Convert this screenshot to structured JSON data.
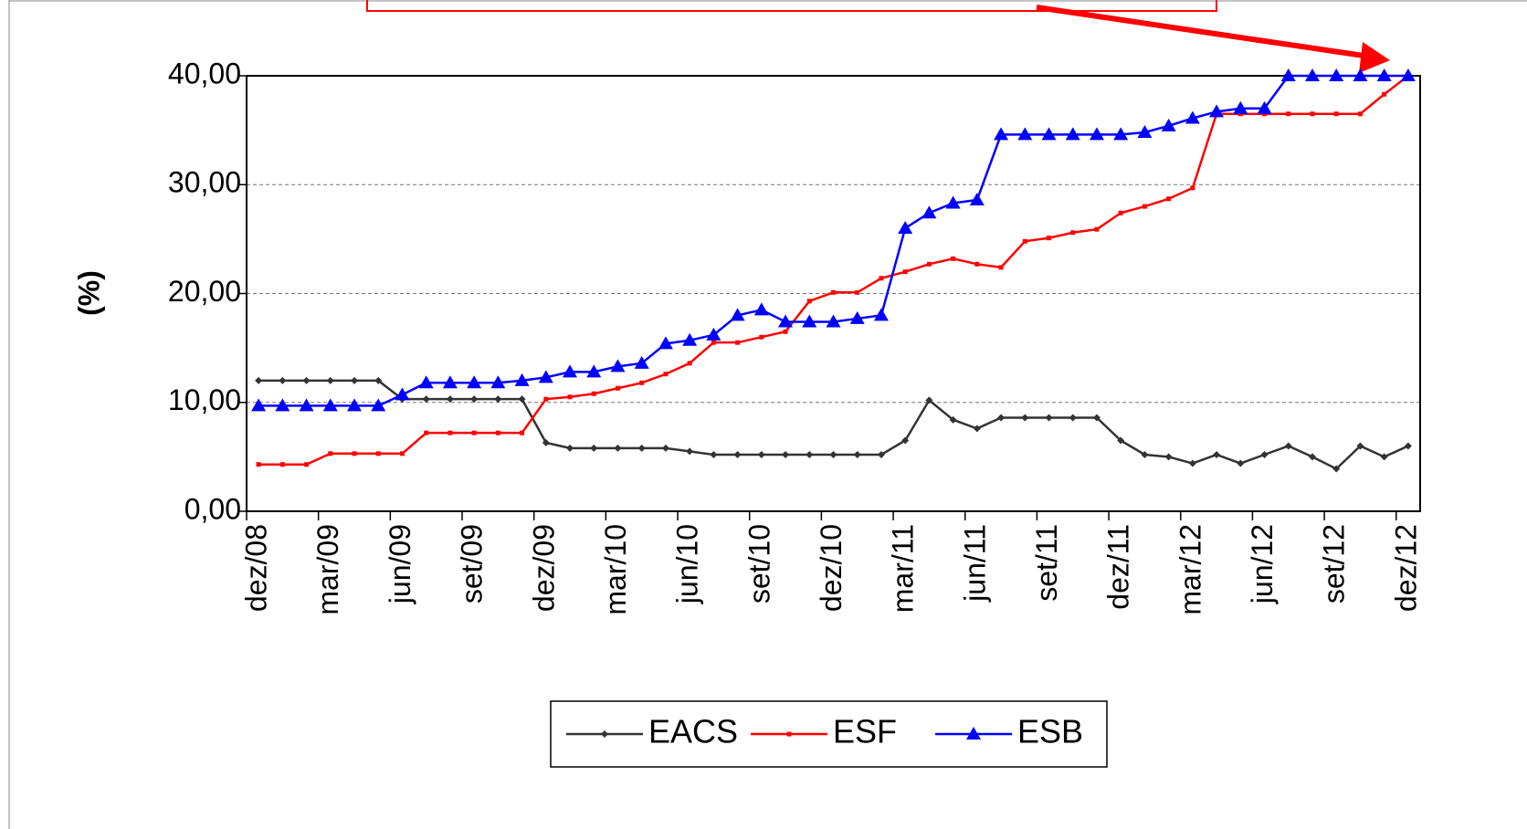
{
  "chart_data": {
    "type": "line",
    "y_label": "(%)",
    "categories": [
      "dez/08",
      null,
      null,
      "mar/09",
      null,
      null,
      "jun/09",
      null,
      null,
      "set/09",
      null,
      null,
      "dez/09",
      null,
      null,
      "mar/10",
      null,
      null,
      "jun/10",
      null,
      null,
      "set/10",
      null,
      null,
      "dez/10",
      null,
      null,
      "mar/11",
      null,
      null,
      "jun/11",
      null,
      null,
      "set/11",
      null,
      null,
      "dez/11",
      null,
      null,
      "mar/12",
      null,
      null,
      "jun/12",
      null,
      null,
      "set/12",
      null,
      null,
      "dez/12"
    ],
    "series": [
      {
        "name": "EACS",
        "color": "#333333",
        "marker": "diamond",
        "values": [
          12,
          12,
          12,
          12,
          12,
          12,
          10.3,
          10.3,
          10.3,
          10.3,
          10.3,
          10.3,
          6.3,
          5.8,
          5.8,
          5.8,
          5.8,
          5.8,
          5.5,
          5.2,
          5.2,
          5.2,
          5.2,
          5.2,
          5.2,
          5.2,
          5.2,
          6.5,
          10.2,
          8.4,
          7.6,
          8.6,
          8.6,
          8.6,
          8.6,
          8.6,
          6.5,
          5.2,
          5.0,
          4.4,
          5.2,
          4.4,
          5.2,
          6.0,
          5.0,
          3.9,
          6.0,
          5.0,
          6.0
        ]
      },
      {
        "name": "ESF",
        "color": "#ff0000",
        "marker": "square",
        "values": [
          4.3,
          4.3,
          4.3,
          5.3,
          5.3,
          5.3,
          5.3,
          7.2,
          7.2,
          7.2,
          7.2,
          7.2,
          10.3,
          10.5,
          10.8,
          11.3,
          11.8,
          12.6,
          13.6,
          15.5,
          15.5,
          16.0,
          16.5,
          19.3,
          20.1,
          20.1,
          21.4,
          22.0,
          22.7,
          23.2,
          22.7,
          22.4,
          24.8,
          25.1,
          25.6,
          25.9,
          27.4,
          28.0,
          28.7,
          29.7,
          36.5,
          36.5,
          36.5,
          36.5,
          36.5,
          36.5,
          36.5,
          38.3,
          40
        ]
      },
      {
        "name": "ESB",
        "color": "#0000ff",
        "marker": "triangle",
        "values": [
          9.7,
          9.7,
          9.7,
          9.7,
          9.7,
          9.7,
          10.7,
          11.8,
          11.8,
          11.8,
          11.8,
          12.0,
          12.3,
          12.8,
          12.8,
          13.3,
          13.6,
          15.4,
          15.7,
          16.2,
          18.0,
          18.5,
          17.4,
          17.4,
          17.4,
          17.7,
          18.0,
          26.0,
          27.4,
          28.3,
          28.6,
          34.6,
          34.6,
          34.6,
          34.6,
          34.6,
          34.6,
          34.8,
          35.4,
          36.1,
          36.7,
          37.0,
          37.0,
          40,
          40,
          40,
          40,
          40,
          40
        ]
      }
    ],
    "ylim": [
      0,
      40
    ],
    "yticks": [
      {
        "value": 0,
        "label": "0,00"
      },
      {
        "value": 10,
        "label": "10,00"
      },
      {
        "value": 20,
        "label": "20,00"
      },
      {
        "value": 30,
        "label": "30,00"
      },
      {
        "value": 40,
        "label": "40,00"
      }
    ],
    "grid": true,
    "legend": "bottom"
  }
}
